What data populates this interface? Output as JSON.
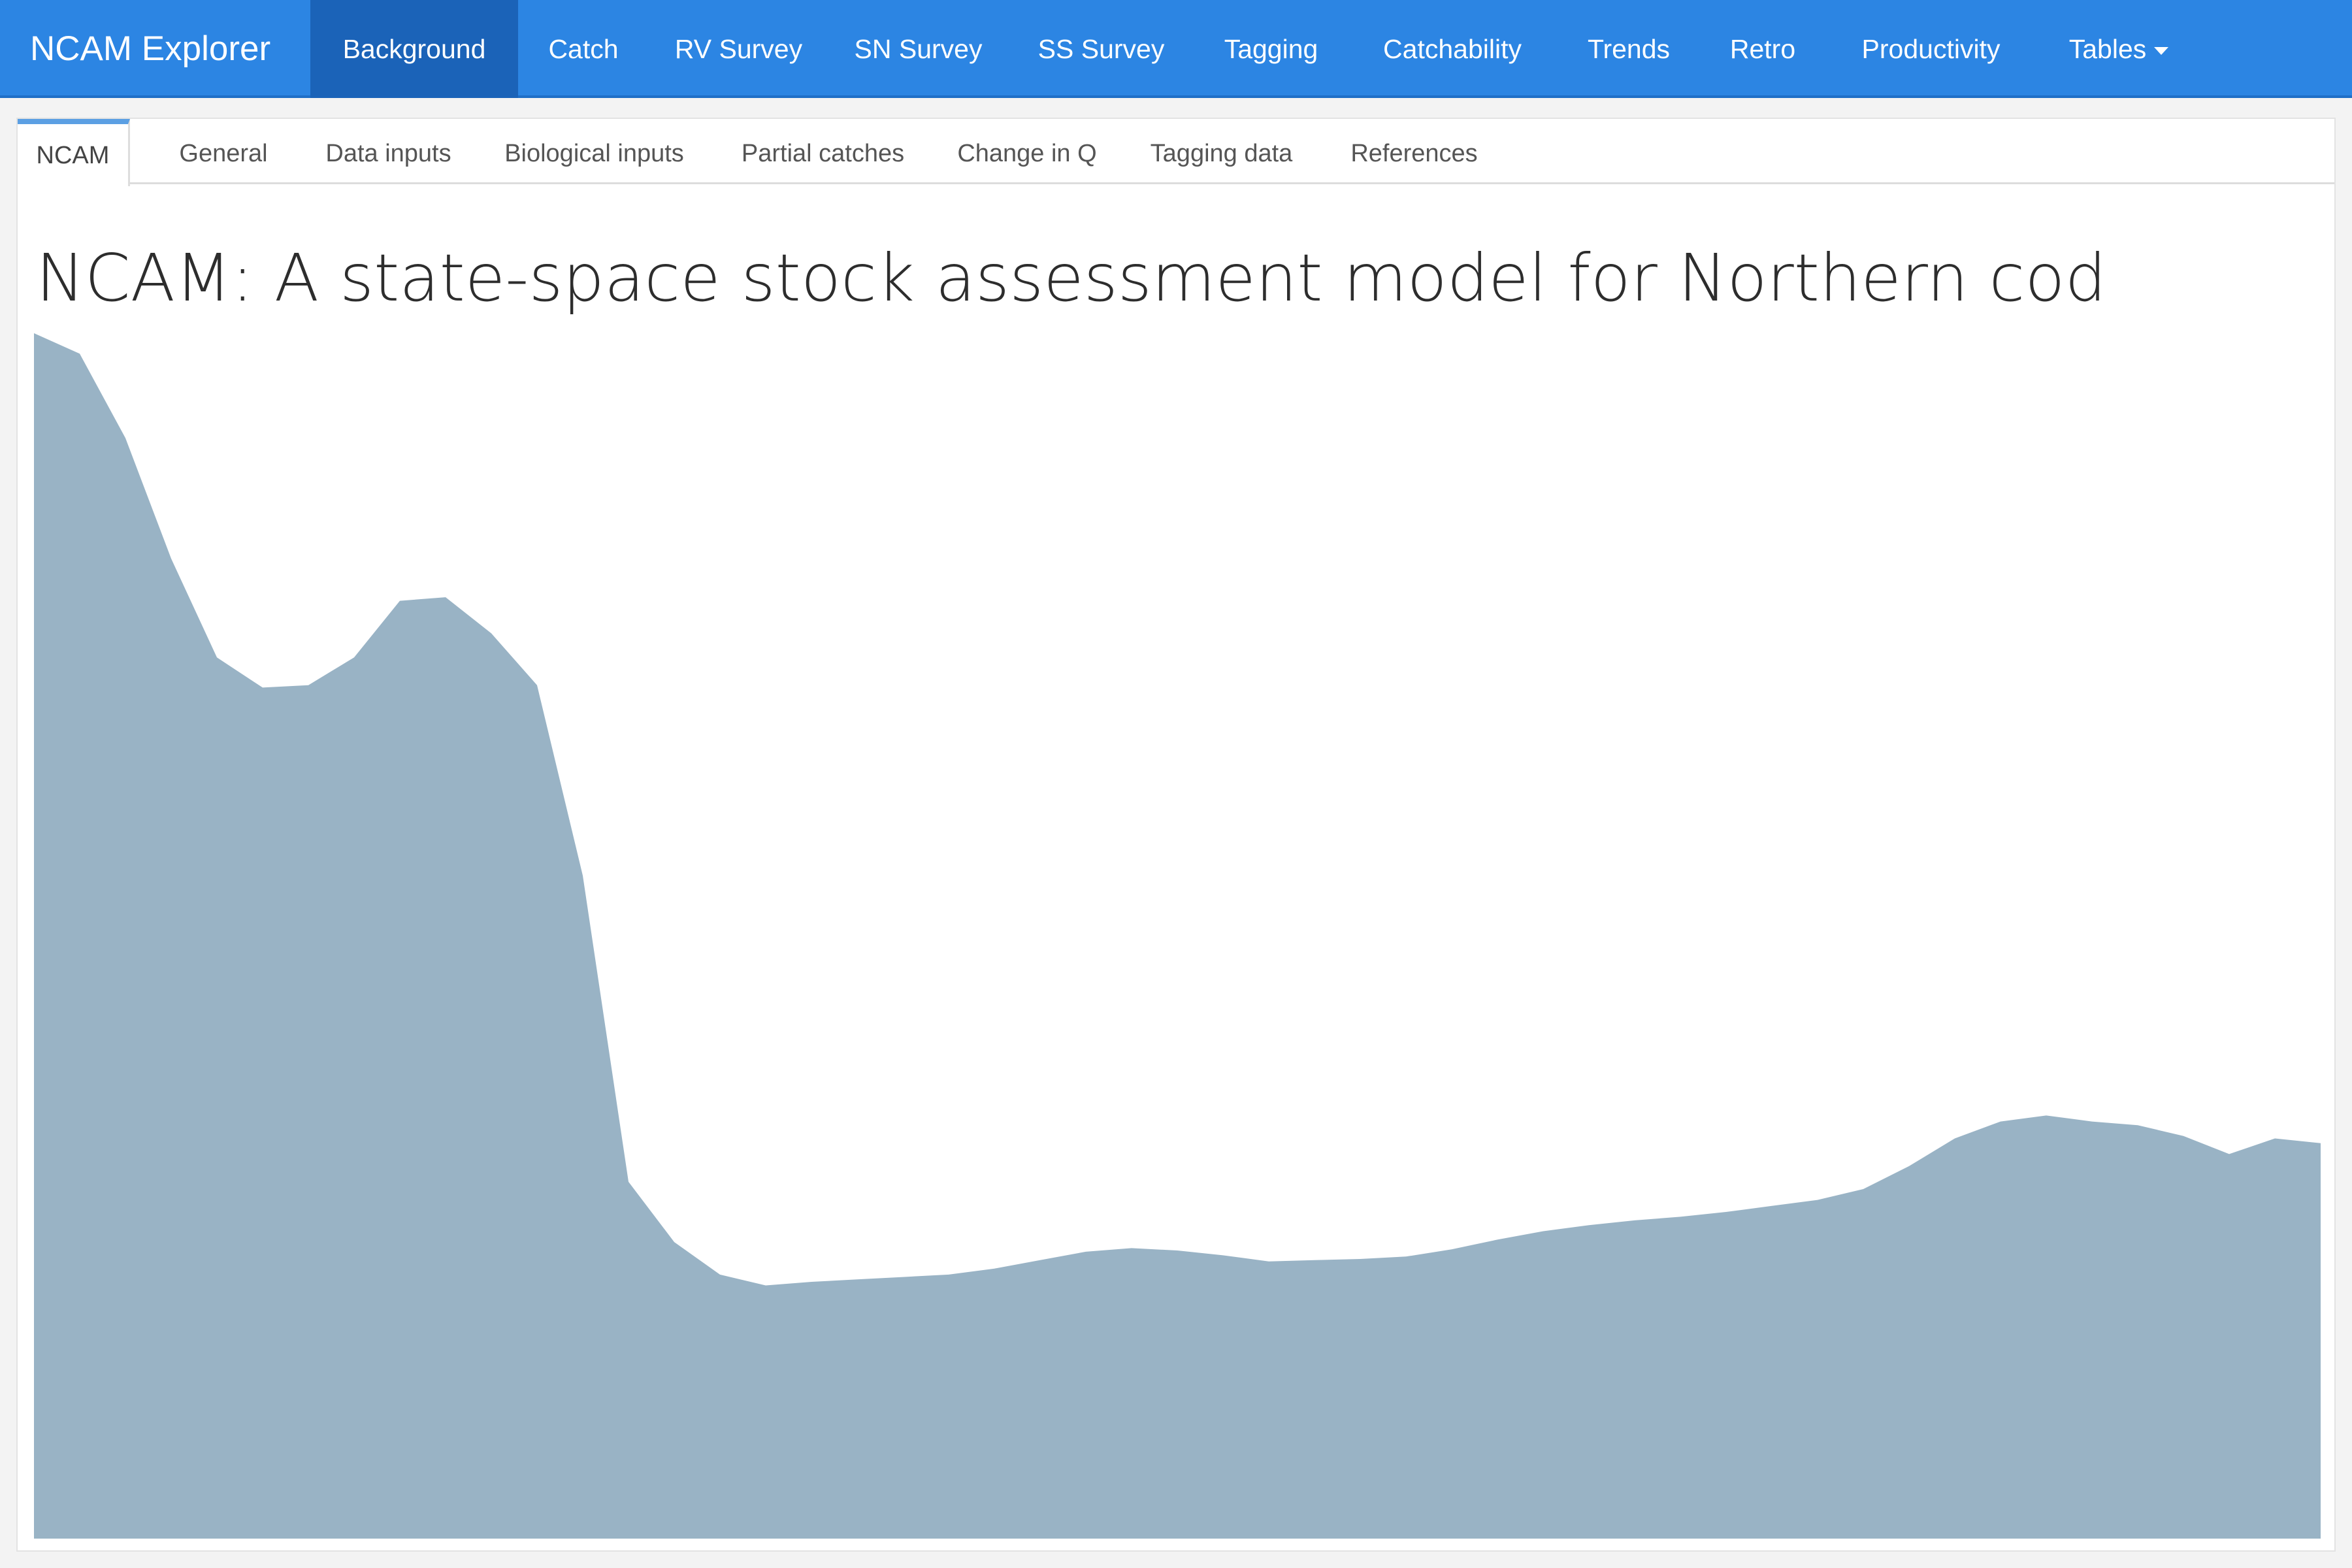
{
  "app": {
    "brand": "NCAM Explorer"
  },
  "navbar": {
    "items": [
      {
        "label": "Background"
      },
      {
        "label": "Catch"
      },
      {
        "label": "RV Survey"
      },
      {
        "label": "SN Survey"
      },
      {
        "label": "SS Survey"
      },
      {
        "label": "Tagging"
      },
      {
        "label": "Catchability"
      },
      {
        "label": "Trends"
      },
      {
        "label": "Retro"
      },
      {
        "label": "Productivity"
      },
      {
        "label": "Tables"
      }
    ],
    "active": "Background"
  },
  "tabs": {
    "items": [
      {
        "label": "NCAM"
      },
      {
        "label": "General"
      },
      {
        "label": "Data inputs"
      },
      {
        "label": "Biological inputs"
      },
      {
        "label": "Partial catches"
      },
      {
        "label": "Change in Q"
      },
      {
        "label": "Tagging data"
      },
      {
        "label": "References"
      }
    ],
    "active": "NCAM"
  },
  "page": {
    "title": "NCAM: A state-space stock assessment model for Northern cod"
  },
  "chart_data": {
    "type": "area",
    "title": "",
    "xlabel": "",
    "ylabel": "",
    "grid": false,
    "legend": "none",
    "fill_color": "#99b3c5",
    "x": [
      1,
      2,
      3,
      4,
      5,
      6,
      7,
      8,
      9,
      10,
      11,
      12,
      13,
      14,
      15,
      16,
      17,
      18,
      19,
      20,
      21,
      22,
      23,
      24,
      25,
      26,
      27,
      28,
      29,
      30,
      31,
      32,
      33,
      34,
      35,
      36,
      37,
      38,
      39,
      40,
      41,
      42,
      43,
      44,
      45,
      46,
      47,
      48,
      49,
      50,
      51
    ],
    "values": [
      100,
      98.3,
      91.3,
      81.3,
      73.1,
      70.6,
      70.8,
      73.1,
      77.8,
      78.1,
      75.1,
      70.8,
      55,
      29.6,
      24.6,
      21.9,
      21,
      21.3,
      21.5,
      21.7,
      21.9,
      22.4,
      23.1,
      23.8,
      24.1,
      23.9,
      23.5,
      23,
      23.1,
      23.2,
      23.4,
      24,
      24.8,
      25.5,
      26,
      26.4,
      26.7,
      27.1,
      27.6,
      28.1,
      29,
      30.9,
      33.2,
      34.6,
      35.1,
      34.6,
      34.3,
      33.4,
      31.9,
      33.2,
      32.8
    ],
    "ylim": [
      0,
      100
    ]
  }
}
